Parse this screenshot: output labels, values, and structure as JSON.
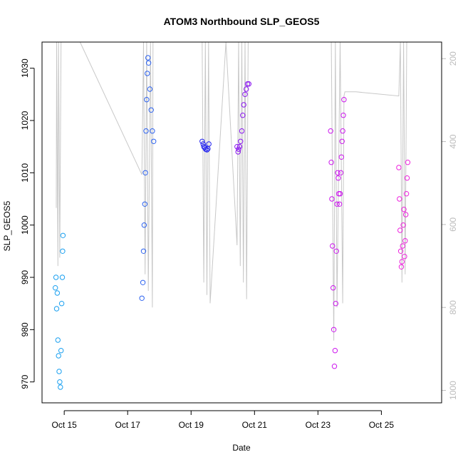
{
  "chart_data": {
    "type": "scatter",
    "title": "ATOM3 Northbound SLP_GEOS5",
    "xlabel": "Date",
    "ylabel": "SLP_GEOS5",
    "x_ticks": [
      "Oct 15",
      "Oct 17",
      "Oct 19",
      "Oct 21",
      "Oct 23",
      "Oct 25"
    ],
    "x_tick_days": [
      15,
      17,
      19,
      21,
      23,
      25
    ],
    "xlim": [
      14.3,
      26.9
    ],
    "y_ticks": [
      970,
      980,
      990,
      1000,
      1010,
      1020,
      1030
    ],
    "ylim": [
      966,
      1035
    ],
    "y2_ticks": [
      200,
      400,
      600,
      800,
      1000
    ],
    "y2lim": [
      1030,
      160
    ],
    "y2_color": "#bbbbbb",
    "right_series": {
      "color": "#c8c8c8",
      "x": [
        14.75,
        14.76,
        14.8,
        14.82,
        14.86,
        14.9,
        14.95,
        15.5,
        17.45,
        17.5,
        17.55,
        17.6,
        17.65,
        17.72,
        17.78,
        17.8,
        19.0,
        19.35,
        19.4,
        19.45,
        19.5,
        19.55,
        19.6,
        20.1,
        20.45,
        20.5,
        20.55,
        20.6,
        20.65,
        20.7,
        20.75,
        20.8,
        23.35,
        23.42,
        23.5,
        23.55,
        23.6,
        23.7,
        23.78,
        23.82,
        23.85,
        24.2,
        25.55,
        25.6,
        25.65,
        25.7,
        25.75,
        25.8
      ],
      "y": [
        560,
        150,
        700,
        150,
        680,
        150,
        150,
        150,
        480,
        150,
        720,
        150,
        760,
        150,
        800,
        150,
        150,
        150,
        740,
        150,
        770,
        150,
        790,
        150,
        650,
        150,
        700,
        150,
        740,
        150,
        780,
        150,
        150,
        150,
        880,
        150,
        800,
        150,
        790,
        290,
        280,
        280,
        290,
        150,
        740,
        150,
        720,
        150
      ]
    },
    "series": [
      {
        "color": "#1aa0f0",
        "x": [
          14.72,
          14.74,
          14.76,
          14.78,
          14.8,
          14.82,
          14.84,
          14.86,
          14.88,
          14.9,
          14.92,
          14.94,
          14.95,
          14.96
        ],
        "y": [
          988,
          990,
          984,
          987,
          978,
          975,
          972,
          970,
          969,
          976,
          985,
          990,
          995,
          998
        ]
      },
      {
        "color": "#2c62f0",
        "x": [
          17.45,
          17.48,
          17.5,
          17.52,
          17.54,
          17.56,
          17.58,
          17.6,
          17.62,
          17.64,
          17.66,
          17.7,
          17.74,
          17.78,
          17.82
        ],
        "y": [
          986,
          989,
          995,
          1000,
          1004,
          1010,
          1018,
          1024,
          1029,
          1032,
          1031,
          1026,
          1022,
          1018,
          1016
        ]
      },
      {
        "color": "#2222f0",
        "x": [
          19.35,
          19.38,
          19.4,
          19.43,
          19.46,
          19.5,
          19.53,
          19.56
        ],
        "y": [
          1016,
          1015.5,
          1015,
          1014.8,
          1014.5,
          1014.4,
          1014.6,
          1015.5
        ]
      },
      {
        "color": "#8a14f0",
        "x": [
          20.45,
          20.48,
          20.5,
          20.53,
          20.56,
          20.6,
          20.63,
          20.66,
          20.7,
          20.74,
          20.78,
          20.82
        ],
        "y": [
          1015,
          1014,
          1014.5,
          1015,
          1016,
          1018,
          1021,
          1023,
          1025,
          1026,
          1027,
          1027
        ]
      },
      {
        "color": "#cc14ee",
        "x": [
          23.4,
          23.42,
          23.44,
          23.46,
          23.48,
          23.5,
          23.52,
          23.54,
          23.56,
          23.58,
          23.6,
          23.62,
          23.64,
          23.66,
          23.68,
          23.7,
          23.72,
          23.74,
          23.76,
          23.78,
          23.8,
          23.82
        ],
        "y": [
          1018,
          1012,
          1005,
          996,
          988,
          980,
          973,
          976,
          985,
          995,
          1004,
          1010,
          1009,
          1006,
          1004,
          1006,
          1010,
          1013,
          1016,
          1018,
          1021,
          1024
        ]
      },
      {
        "color": "#ee22dd",
        "x": [
          25.55,
          25.57,
          25.59,
          25.61,
          25.63,
          25.65,
          25.67,
          25.69,
          25.71,
          25.73,
          25.75,
          25.77,
          25.79,
          25.81,
          25.83
        ],
        "y": [
          1011,
          1005,
          999,
          995,
          992,
          993,
          996,
          1000,
          1003,
          994,
          997,
          1002,
          1006,
          1009,
          1012
        ]
      }
    ]
  }
}
